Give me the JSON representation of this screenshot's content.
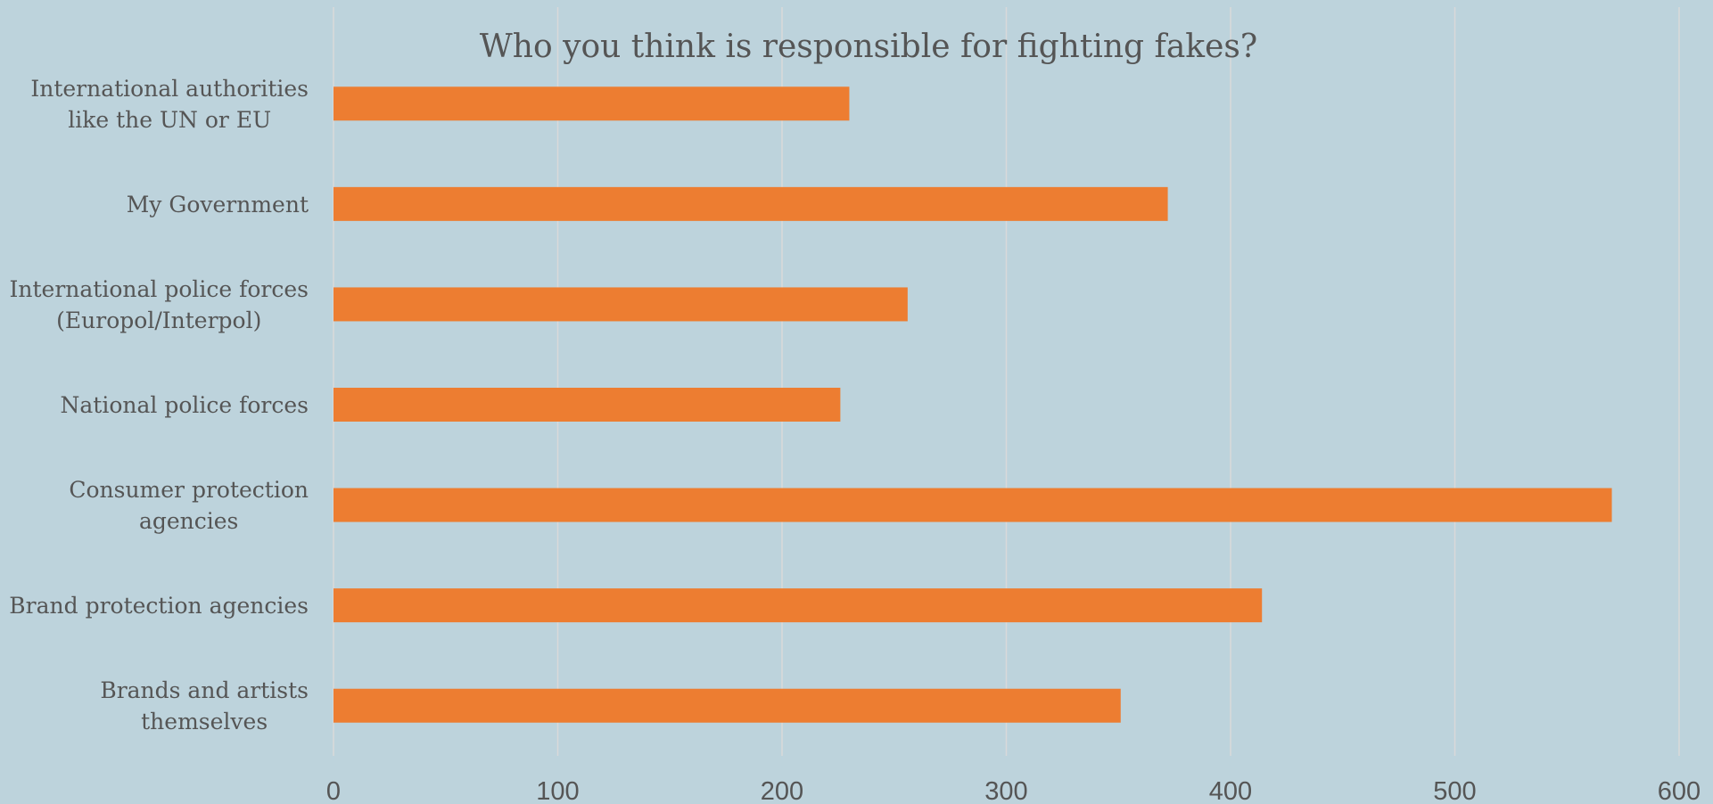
{
  "colors": {
    "background": "#bdd3dc",
    "bar": "#ed7d31",
    "gridline": "#d9d9d9",
    "text": "#555555"
  },
  "chart_data": {
    "type": "bar",
    "orientation": "horizontal",
    "title": "Who you think is responsible for fighting fakes?",
    "xlabel": "",
    "ylabel": "",
    "categories": [
      [
        "International authorities",
        "like the UN or EU"
      ],
      [
        "My Government"
      ],
      [
        "International police forces",
        "(Europol/Interpol)"
      ],
      [
        "National police forces"
      ],
      [
        "Consumer protection",
        "agencies"
      ],
      [
        "Brand protection agencies"
      ],
      [
        "Brands and artists",
        "themselves"
      ]
    ],
    "values": [
      230,
      372,
      256,
      226,
      570,
      414,
      351
    ],
    "xlim": [
      0,
      600
    ],
    "xticks": [
      0,
      100,
      200,
      300,
      400,
      500,
      600
    ],
    "grid": true,
    "legend": "none"
  }
}
